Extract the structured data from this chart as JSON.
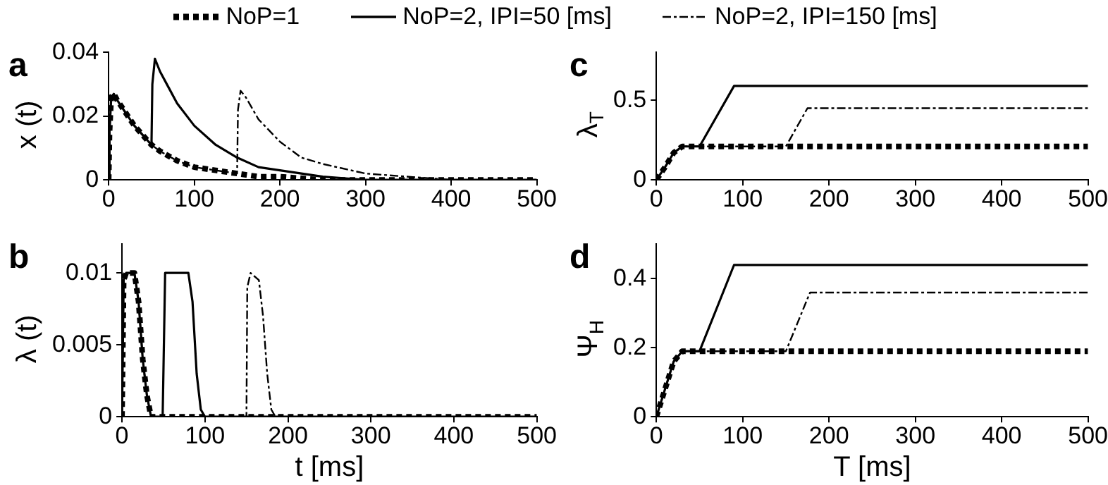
{
  "chart_data": [
    {
      "type": "line",
      "title": "a",
      "ylabel": "x (t)",
      "xlim": [
        0,
        500
      ],
      "xticks": [
        0,
        100,
        200,
        300,
        400,
        500
      ],
      "ylim": [
        0,
        0.04
      ],
      "yticks": [
        0,
        0.02,
        0.04
      ],
      "legend": "top",
      "grid": false,
      "marker": "none",
      "series": [
        {
          "name": "NoP=1",
          "color": "#000000",
          "line_style": "dotted",
          "x": [
            0,
            1,
            3,
            6,
            10,
            20,
            30,
            40,
            50,
            60,
            80,
            100,
            125,
            150,
            175,
            200,
            250,
            300,
            400,
            500
          ],
          "values": [
            0,
            0.015,
            0.026,
            0.027,
            0.025,
            0.021,
            0.017,
            0.014,
            0.011,
            0.009,
            0.006,
            0.004,
            0.003,
            0.002,
            0.001,
            0.001,
            0,
            0,
            0,
            0
          ]
        },
        {
          "name": "NoP=2, IPI=50 [ms]",
          "color": "#000000",
          "line_style": "solid",
          "x": [
            0,
            1,
            3,
            6,
            10,
            20,
            30,
            40,
            50,
            51,
            54,
            60,
            70,
            80,
            100,
            125,
            150,
            175,
            200,
            250,
            300,
            400,
            500
          ],
          "values": [
            0,
            0.015,
            0.026,
            0.027,
            0.025,
            0.021,
            0.017,
            0.014,
            0.011,
            0.03,
            0.038,
            0.034,
            0.029,
            0.024,
            0.017,
            0.011,
            0.007,
            0.004,
            0.003,
            0.001,
            0,
            0,
            0
          ]
        },
        {
          "name": "NoP=2, IPI=150 [ms]",
          "color": "#000000",
          "line_style": "dashdot",
          "x": [
            0,
            1,
            3,
            6,
            10,
            20,
            30,
            40,
            50,
            60,
            80,
            100,
            125,
            150,
            151,
            154,
            160,
            175,
            200,
            225,
            250,
            300,
            350,
            400,
            500
          ],
          "values": [
            0,
            0.015,
            0.026,
            0.027,
            0.025,
            0.021,
            0.017,
            0.014,
            0.011,
            0.009,
            0.006,
            0.004,
            0.003,
            0.002,
            0.022,
            0.028,
            0.026,
            0.019,
            0.012,
            0.007,
            0.005,
            0.002,
            0.001,
            0,
            0
          ]
        }
      ]
    },
    {
      "type": "line",
      "title": "b",
      "xlabel": "t [ms]",
      "ylabel": "λ (t)",
      "xlim": [
        0,
        500
      ],
      "xticks": [
        0,
        100,
        200,
        300,
        400,
        500
      ],
      "ylim": [
        0,
        0.012
      ],
      "yticks": [
        0,
        0.005,
        0.01
      ],
      "grid": false,
      "marker": "none",
      "series": [
        {
          "color": "#000000",
          "line_style": "dotted",
          "x": [
            0,
            2,
            5,
            15,
            20,
            25,
            30,
            35,
            500
          ],
          "values": [
            0,
            0.0095,
            0.01,
            0.01,
            0.008,
            0.004,
            0.0015,
            0,
            0
          ]
        },
        {
          "color": "#000000",
          "line_style": "solid",
          "x": [
            0,
            2,
            5,
            15,
            20,
            25,
            30,
            35,
            49,
            50,
            52,
            80,
            85,
            90,
            95,
            100,
            500
          ],
          "values": [
            0,
            0.0095,
            0.01,
            0.01,
            0.008,
            0.004,
            0.0015,
            0,
            0,
            0,
            0.01,
            0.01,
            0.008,
            0.003,
            0.0005,
            0,
            0
          ]
        },
        {
          "color": "#000000",
          "line_style": "dashdot",
          "x": [
            0,
            2,
            5,
            15,
            20,
            25,
            30,
            35,
            149,
            150,
            151,
            155,
            165,
            170,
            175,
            180,
            185,
            500
          ],
          "values": [
            0,
            0.0095,
            0.01,
            0.01,
            0.008,
            0.004,
            0.0015,
            0,
            0,
            0,
            0.009,
            0.01,
            0.0095,
            0.007,
            0.003,
            0.0005,
            0,
            0
          ]
        }
      ]
    },
    {
      "type": "line",
      "title": "c",
      "ylabel": "λ$_{T}$",
      "xlim": [
        0,
        500
      ],
      "xticks": [
        0,
        100,
        200,
        300,
        400,
        500
      ],
      "ylim": [
        0,
        0.8
      ],
      "yticks": [
        0,
        0.5
      ],
      "grid": false,
      "marker": "none",
      "series": [
        {
          "color": "#000000",
          "line_style": "dotted",
          "x": [
            0,
            10,
            20,
            30,
            500
          ],
          "values": [
            0,
            0.08,
            0.17,
            0.21,
            0.21
          ]
        },
        {
          "color": "#000000",
          "line_style": "solid",
          "x": [
            0,
            10,
            20,
            30,
            50,
            90,
            500
          ],
          "values": [
            0,
            0.08,
            0.17,
            0.21,
            0.21,
            0.59,
            0.59
          ]
        },
        {
          "color": "#000000",
          "line_style": "dashdot",
          "x": [
            0,
            10,
            20,
            30,
            150,
            175,
            500
          ],
          "values": [
            0,
            0.08,
            0.17,
            0.21,
            0.21,
            0.45,
            0.45
          ]
        }
      ]
    },
    {
      "type": "line",
      "title": "d",
      "xlabel": "T [ms]",
      "ylabel": "Ψ$_{H}$",
      "xlim": [
        0,
        500
      ],
      "xticks": [
        0,
        100,
        200,
        300,
        400,
        500
      ],
      "ylim": [
        0,
        0.5
      ],
      "yticks": [
        0,
        0.2,
        0.4
      ],
      "grid": false,
      "marker": "none",
      "series": [
        {
          "color": "#000000",
          "line_style": "dotted",
          "x": [
            0,
            10,
            20,
            30,
            500
          ],
          "values": [
            0,
            0.08,
            0.16,
            0.19,
            0.19
          ]
        },
        {
          "color": "#000000",
          "line_style": "solid",
          "x": [
            0,
            10,
            20,
            30,
            50,
            90,
            500
          ],
          "values": [
            0,
            0.08,
            0.16,
            0.19,
            0.19,
            0.44,
            0.44
          ]
        },
        {
          "color": "#000000",
          "line_style": "dashdot",
          "x": [
            0,
            10,
            20,
            30,
            150,
            178,
            500
          ],
          "values": [
            0,
            0.08,
            0.16,
            0.19,
            0.19,
            0.36,
            0.36
          ]
        }
      ]
    }
  ]
}
